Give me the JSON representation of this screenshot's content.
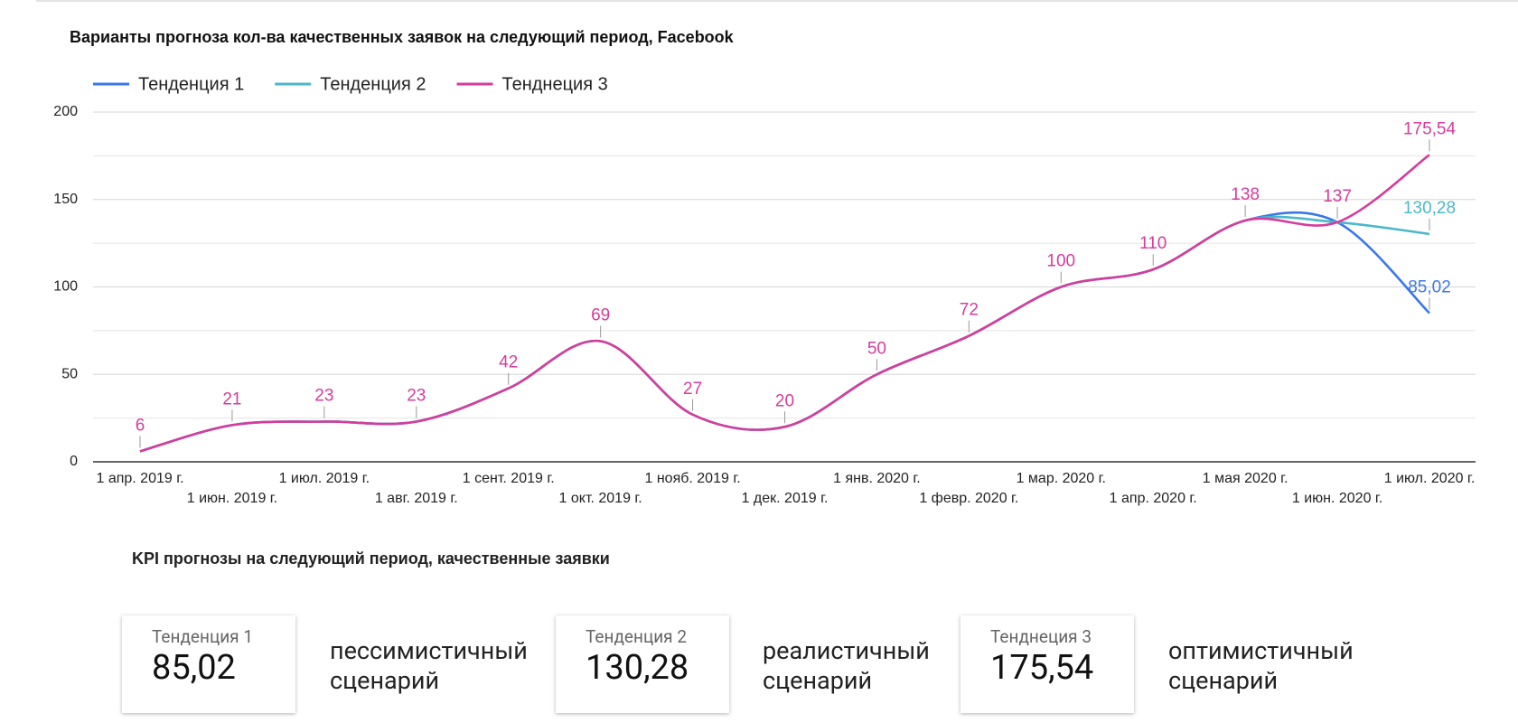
{
  "chart_data": {
    "type": "line",
    "title": "Варианты прогноза кол-ва качественных заявок на следующий период, Facebook",
    "categories": [
      "1 апр. 2019 г.",
      "1 июн. 2019 г.",
      "1 июл. 2019 г.",
      "1 авг. 2019 г.",
      "1 сент. 2019 г.",
      "1 окт. 2019 г.",
      "1 нояб. 2019 г.",
      "1 дек. 2019 г.",
      "1 янв. 2020 г.",
      "1 февр. 2020 г.",
      "1 мар. 2020 г.",
      "1 апр. 2020 г.",
      "1 мая 2020 г.",
      "1 июн. 2020 г.",
      "1 июл. 2020 г."
    ],
    "series": [
      {
        "name": "Тенденция 1",
        "color": "#3b78e7",
        "values": [
          6,
          21,
          23,
          23,
          42,
          69,
          27,
          20,
          50,
          72,
          100,
          110,
          138,
          137,
          85.02
        ],
        "value_labels": [
          null,
          null,
          null,
          null,
          null,
          null,
          null,
          null,
          null,
          null,
          null,
          null,
          null,
          null,
          "85,02"
        ]
      },
      {
        "name": "Тенденция 2",
        "color": "#4bb8c9",
        "values": [
          6,
          21,
          23,
          23,
          42,
          69,
          27,
          20,
          50,
          72,
          100,
          110,
          138,
          137,
          130.28
        ],
        "value_labels": [
          null,
          null,
          null,
          null,
          null,
          null,
          null,
          null,
          null,
          null,
          null,
          null,
          null,
          null,
          "130,28"
        ]
      },
      {
        "name": "Тенднеция 3",
        "color": "#d63c9c",
        "values": [
          6,
          21,
          23,
          23,
          42,
          69,
          27,
          20,
          50,
          72,
          100,
          110,
          138,
          137,
          175.54
        ],
        "value_labels": [
          "6",
          "21",
          "23",
          "23",
          "42",
          "69",
          "27",
          "20",
          "50",
          "72",
          "100",
          "110",
          "138",
          "137",
          "175,54"
        ]
      }
    ],
    "ylim": [
      0,
      200
    ],
    "yticks": [
      0,
      50,
      100,
      150,
      200
    ],
    "minor_yticks": [
      25,
      75,
      125,
      175
    ],
    "grid": true,
    "legend": "top-left"
  },
  "kpi": {
    "title": "KPI прогнозы на следующий период, качественные заявки",
    "cards": [
      {
        "label": "Тенденция 1",
        "value": "85,02",
        "caption": "пессимистичный сценарий"
      },
      {
        "label": "Тенденция 2",
        "value": "130,28",
        "caption": "реалистичный сценарий"
      },
      {
        "label": "Тенднеция 3",
        "value": "175,54",
        "caption": "оптимистичный сценарий"
      }
    ]
  }
}
